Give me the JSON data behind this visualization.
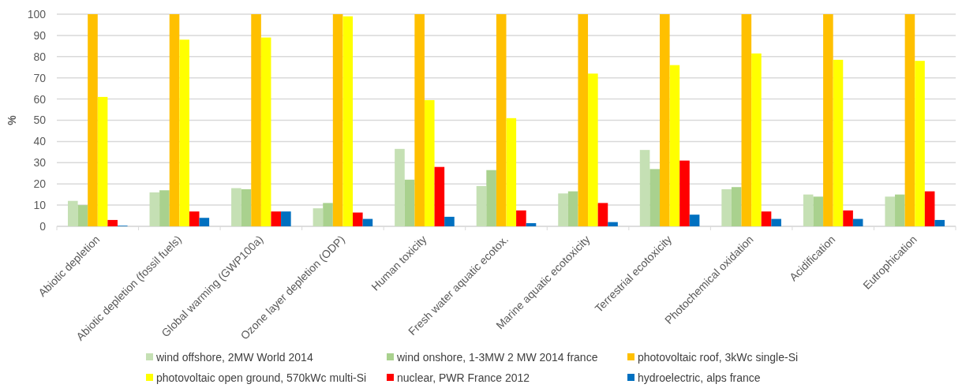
{
  "chart_data": {
    "type": "bar",
    "ylabel": "%",
    "categories": [
      "Abiotic depletion",
      "Abiotic depletion (fossil fuels)",
      "Global warming (GWP100a)",
      "Ozone layer depletion (ODP)",
      "Human toxicity",
      "Fresh water aquatic ecotox.",
      "Marine aquatic ecotoxicity",
      "Terrestrial ecotoxicity",
      "Photochemical oxidation",
      "Acidification",
      "Eutrophication"
    ],
    "series": [
      {
        "name": "wind offshore, 2MW  World 2014",
        "color": "#c5e0b4",
        "values": [
          12,
          16,
          18,
          8.5,
          36.5,
          19,
          15.5,
          36,
          17.5,
          15,
          14
        ]
      },
      {
        "name": "wind onshore, 1-3MW 2 MW 2014 france",
        "color": "#a9d18e",
        "values": [
          10,
          17,
          17.5,
          11,
          22,
          26.5,
          16.5,
          27,
          18.5,
          14,
          15
        ]
      },
      {
        "name": "photovoltaic roof, 3kWc single-Si",
        "color": "#ffc000",
        "values": [
          100,
          100,
          100,
          100,
          100,
          100,
          100,
          100,
          100,
          100,
          100
        ]
      },
      {
        "name": "photovoltaic open ground, 570kWc multi-Si",
        "color": "#ffff00",
        "values": [
          61,
          88,
          89,
          99,
          59.5,
          51,
          72,
          76,
          81.5,
          78.5,
          78
        ]
      },
      {
        "name": "nuclear, PWR France 2012",
        "color": "#ff0000",
        "values": [
          3,
          7,
          7,
          6.5,
          28,
          7.5,
          11,
          31,
          7,
          7.5,
          16.5
        ]
      },
      {
        "name": "hydroelectric, alps france",
        "color": "#0070c0",
        "values": [
          0.3,
          4,
          7,
          3.5,
          4.5,
          1.5,
          2,
          5.5,
          3.5,
          3.5,
          3
        ]
      }
    ],
    "ylim": [
      0,
      100
    ],
    "yticks": [
      0,
      10,
      20,
      30,
      40,
      50,
      60,
      70,
      80,
      90,
      100
    ],
    "grid": "y",
    "legend": "bottom"
  }
}
